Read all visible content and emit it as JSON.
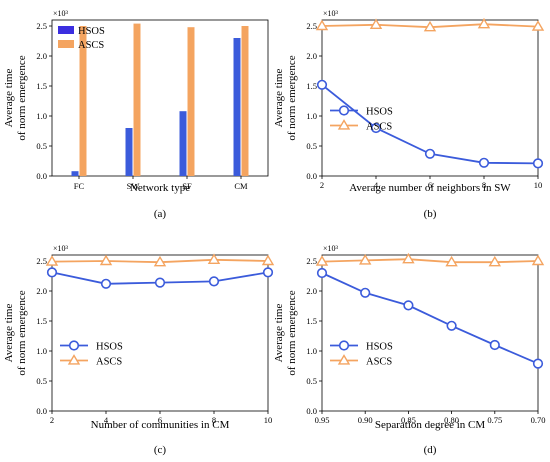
{
  "colors": {
    "hsos": "#3b5bdb",
    "ascs": "#f4a460",
    "hsos_legend": "#3b2ee0"
  },
  "chart_data": [
    {
      "type": "bar",
      "panel_label": "(a)",
      "categories": [
        "FC",
        "SW",
        "SF",
        "CM"
      ],
      "series": [
        {
          "name": "HSOS",
          "values": [
            0.08,
            0.8,
            1.08,
            2.3
          ]
        },
        {
          "name": "ASCS",
          "values": [
            2.5,
            2.54,
            2.48,
            2.5
          ]
        }
      ],
      "xlabel": "Network type",
      "ylabel": [
        "Average time",
        "of norm emergence"
      ],
      "y_scale_label": "×10³",
      "ylim": [
        0,
        2.6
      ],
      "yticks": [
        "0.0",
        "0.5",
        "1.0",
        "1.5",
        "2.0",
        "2.5"
      ],
      "legend": "top-left",
      "grid": false
    },
    {
      "type": "line",
      "panel_label": "(b)",
      "x": [
        2,
        4,
        6,
        8,
        10
      ],
      "xticks": [
        "2",
        "4",
        "6",
        "8",
        "10"
      ],
      "xlim": [
        2,
        10
      ],
      "series": [
        {
          "name": "HSOS",
          "marker": "circle",
          "values": [
            1.52,
            0.8,
            0.37,
            0.22,
            0.21
          ]
        },
        {
          "name": "ASCS",
          "marker": "triangle",
          "values": [
            2.5,
            2.52,
            2.48,
            2.53,
            2.49
          ]
        }
      ],
      "xlabel": "Average number of neighbors in SW",
      "ylabel": [
        "Average time",
        "of norm emergence"
      ],
      "y_scale_label": "×10³",
      "ylim": [
        0,
        2.6
      ],
      "yticks": [
        "0.0",
        "0.5",
        "1.0",
        "1.5",
        "2.0",
        "2.5"
      ],
      "legend": "center-left",
      "grid": false
    },
    {
      "type": "line",
      "panel_label": "(c)",
      "x": [
        2,
        4,
        6,
        8,
        10
      ],
      "xticks": [
        "2",
        "4",
        "6",
        "8",
        "10"
      ],
      "xlim": [
        2,
        10
      ],
      "series": [
        {
          "name": "HSOS",
          "marker": "circle",
          "values": [
            2.31,
            2.12,
            2.14,
            2.16,
            2.31
          ]
        },
        {
          "name": "ASCS",
          "marker": "triangle",
          "values": [
            2.49,
            2.5,
            2.48,
            2.52,
            2.5
          ]
        }
      ],
      "xlabel": "Number of communities in CM",
      "ylabel": [
        "Average time",
        "of norm emergence"
      ],
      "y_scale_label": "×10³",
      "ylim": [
        0,
        2.6
      ],
      "yticks": [
        "0.0",
        "0.5",
        "1.0",
        "1.5",
        "2.0",
        "2.5"
      ],
      "legend": "center-left",
      "grid": false
    },
    {
      "type": "line",
      "panel_label": "(d)",
      "x": [
        0.95,
        0.9,
        0.85,
        0.8,
        0.75,
        0.7
      ],
      "xticks": [
        "0.95",
        "0.90",
        "0.85",
        "0.80",
        "0.75",
        "0.70"
      ],
      "xlim": [
        0.95,
        0.7
      ],
      "series": [
        {
          "name": "HSOS",
          "marker": "circle",
          "values": [
            2.3,
            1.97,
            1.76,
            1.42,
            1.1,
            0.79
          ]
        },
        {
          "name": "ASCS",
          "marker": "triangle",
          "values": [
            2.49,
            2.51,
            2.53,
            2.48,
            2.48,
            2.5
          ]
        }
      ],
      "xlabel": "Separation degree in CM",
      "ylabel": [
        "Average time",
        "of norm emergence"
      ],
      "y_scale_label": "×10³",
      "ylim": [
        0,
        2.6
      ],
      "yticks": [
        "0.0",
        "0.5",
        "1.0",
        "1.5",
        "2.0",
        "2.5"
      ],
      "legend": "center-left",
      "grid": false
    }
  ]
}
